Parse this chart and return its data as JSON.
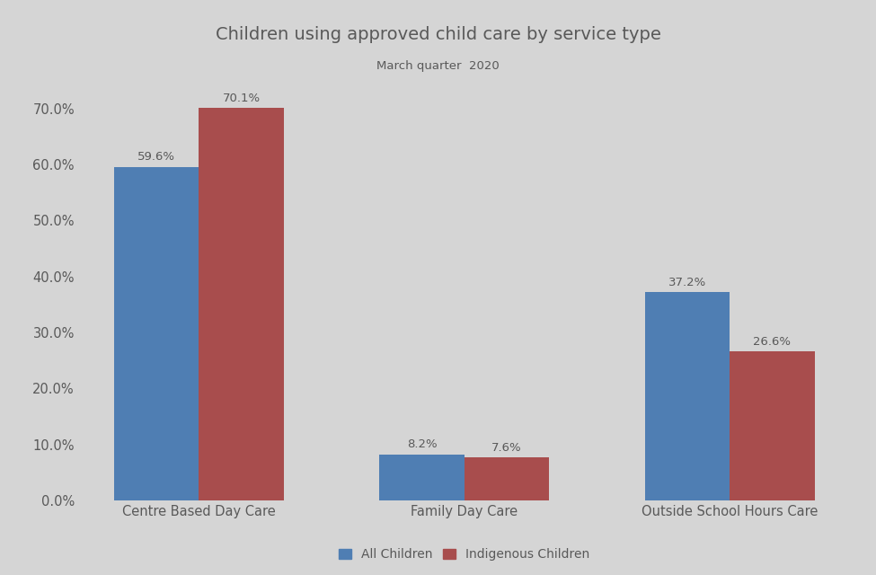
{
  "title": "Children using approved child care by service type",
  "subtitle": "March quarter  2020",
  "categories": [
    "Centre Based Day Care",
    "Family Day Care",
    "Outside School Hours Care"
  ],
  "all_children": [
    59.6,
    8.2,
    37.2
  ],
  "indigenous_children": [
    70.1,
    7.6,
    26.6
  ],
  "all_children_color": "#4F7EB3",
  "indigenous_children_color": "#A84D4D",
  "background_color": "#D5D5D5",
  "bar_width": 0.32,
  "ylim": [
    0,
    75
  ],
  "yticks": [
    0,
    10,
    20,
    30,
    40,
    50,
    60,
    70
  ],
  "ytick_labels": [
    "0.0%",
    "10.0%",
    "20.0%",
    "30.0%",
    "40.0%",
    "50.0%",
    "60.0%",
    "70.0%"
  ],
  "legend_labels": [
    "All Children",
    "Indigenous Children"
  ],
  "title_fontsize": 14,
  "subtitle_fontsize": 9.5,
  "tick_label_fontsize": 10.5,
  "bar_label_fontsize": 9.5,
  "legend_fontsize": 10,
  "text_color": "#595959"
}
